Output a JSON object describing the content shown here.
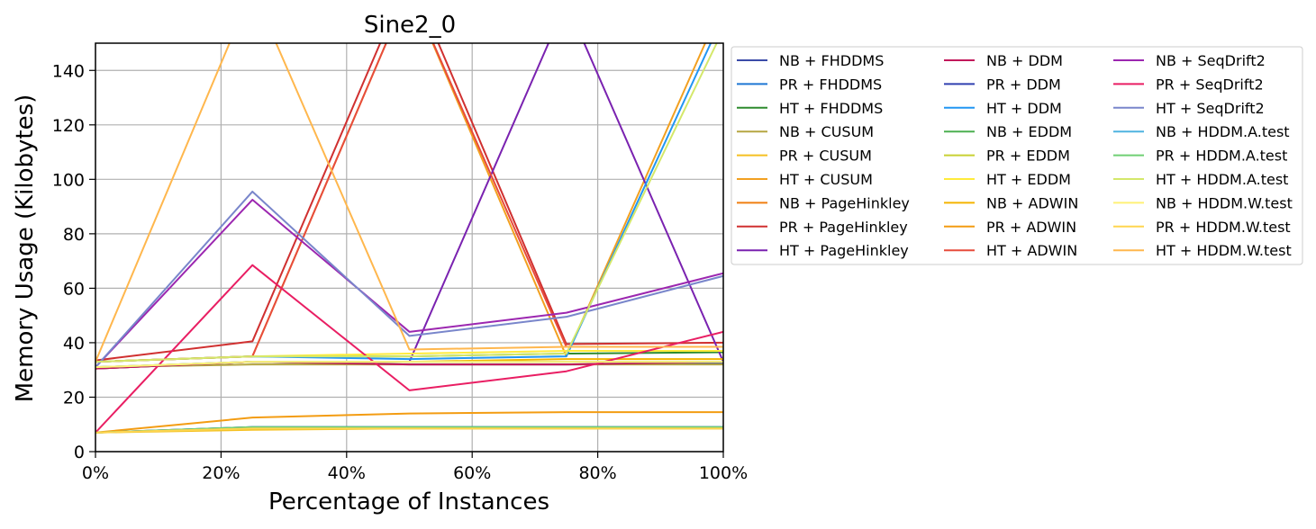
{
  "chart_data": {
    "type": "line",
    "title": "Sine2_0",
    "xlabel": "Percentage of Instances",
    "ylabel": "Memory Usage (Kilobytes)",
    "x": [
      0,
      25,
      50,
      75,
      100
    ],
    "xlim": [
      0,
      100
    ],
    "ylim": [
      0,
      150
    ],
    "xticks": [
      "0%",
      "20%",
      "40%",
      "60%",
      "80%",
      "100%"
    ],
    "yticks": [
      "0",
      "20",
      "40",
      "60",
      "80",
      "100",
      "120",
      "140"
    ],
    "grid": true,
    "legend_position": "outside-right",
    "series": [
      {
        "name": "NB + FHDDMS",
        "color": "#3b4ba8",
        "values": [
          30.5,
          33,
          32,
          32,
          32.5
        ]
      },
      {
        "name": "PR + FHDDMS",
        "color": "#1f77d4",
        "values": [
          7,
          9,
          9,
          9,
          9
        ]
      },
      {
        "name": "HT + FHDDMS",
        "color": "#2e8b2e",
        "values": [
          33,
          35,
          35,
          36,
          36.5
        ]
      },
      {
        "name": "NB + CUSUM",
        "color": "#b5a642",
        "values": [
          31,
          32,
          32,
          32,
          32
        ]
      },
      {
        "name": "PR + CUSUM",
        "color": "#f5c022",
        "values": [
          7,
          8,
          8.5,
          8.5,
          8.5
        ]
      },
      {
        "name": "HT + CUSUM",
        "color": "#f2a020",
        "values": [
          33,
          35,
          170,
          35,
          165
        ]
      },
      {
        "name": "NB + PageHinkley",
        "color": "#f07f10",
        "values": [
          30.5,
          33,
          33,
          33,
          33
        ]
      },
      {
        "name": "PR + PageHinkley",
        "color": "#d03030",
        "values": [
          33.5,
          40.5,
          175,
          39.5,
          40
        ]
      },
      {
        "name": "HT + PageHinkley",
        "color": "#7a22b0",
        "values": [
          30.5,
          33,
          33,
          165,
          33
        ]
      },
      {
        "name": "NB + DDM",
        "color": "#c2185b",
        "values": [
          30.5,
          33,
          32,
          32,
          33
        ]
      },
      {
        "name": "PR + DDM",
        "color": "#3040b0",
        "values": [
          7,
          9,
          9,
          9,
          9
        ]
      },
      {
        "name": "HT + DDM",
        "color": "#2196f3",
        "values": [
          33,
          35,
          34,
          35,
          160
        ]
      },
      {
        "name": "NB + EDDM",
        "color": "#4caf50",
        "values": [
          31,
          33,
          33,
          33,
          33
        ]
      },
      {
        "name": "PR + EDDM",
        "color": "#c8d032",
        "values": [
          7,
          8.5,
          8.5,
          8.5,
          8.5
        ]
      },
      {
        "name": "HT + EDDM",
        "color": "#ffeb3b",
        "values": [
          33,
          35,
          36,
          37,
          37
        ]
      },
      {
        "name": "NB + ADWIN",
        "color": "#f4b400",
        "values": [
          31,
          33,
          33,
          34,
          34
        ]
      },
      {
        "name": "PR + ADWIN",
        "color": "#f39c12",
        "values": [
          7,
          12.5,
          14,
          14.5,
          14.5
        ]
      },
      {
        "name": "HT + ADWIN",
        "color": "#e74c3c",
        "values": [
          33,
          35,
          170,
          38.5,
          38.5
        ]
      },
      {
        "name": "NB + SeqDrift2",
        "color": "#9c27b0",
        "values": [
          31,
          92.5,
          44,
          51,
          65.5
        ]
      },
      {
        "name": "PR + SeqDrift2",
        "color": "#e91e63",
        "values": [
          7,
          68.5,
          22.5,
          29.5,
          44
        ]
      },
      {
        "name": "HT + SeqDrift2",
        "color": "#7986cb",
        "values": [
          31,
          95.5,
          42.5,
          49.5,
          64.5
        ]
      },
      {
        "name": "NB + HDDM.A.test",
        "color": "#4fb3e0",
        "values": [
          31,
          33,
          33,
          33,
          33
        ]
      },
      {
        "name": "PR + HDDM.A.test",
        "color": "#6fcf73",
        "values": [
          7,
          9,
          9,
          9,
          9
        ]
      },
      {
        "name": "HT + HDDM.A.test",
        "color": "#d4e86a",
        "values": [
          33,
          35,
          35,
          36,
          155
        ]
      },
      {
        "name": "NB + HDDM.W.test",
        "color": "#fff176",
        "values": [
          31,
          33,
          33,
          33,
          33
        ]
      },
      {
        "name": "PR + HDDM.W.test",
        "color": "#ffd54f",
        "values": [
          7,
          8.5,
          8.5,
          8.5,
          8.5
        ]
      },
      {
        "name": "HT + HDDM.W.test",
        "color": "#ffb74d",
        "values": [
          33,
          170,
          37.5,
          38.5,
          38.5
        ]
      }
    ]
  }
}
